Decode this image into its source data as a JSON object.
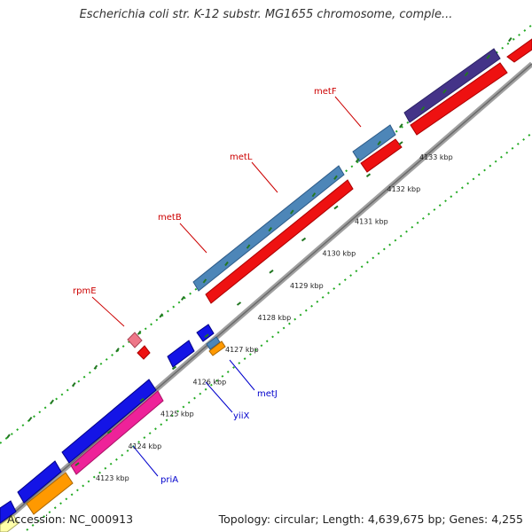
{
  "title": "Escherichia coli str. K-12 substr. MG1655 chromosome, comple...",
  "footer": {
    "accession": "Accession: NC_000913",
    "summary": "Topology: circular; Length: 4,639,675 bp; Genes: 4,255"
  },
  "ticks": [
    "4123 kbp",
    "4124 kbp",
    "4125 kbp",
    "4126 kbp",
    "4127 kbp",
    "4128 kbp",
    "4129 kbp",
    "4130 kbp",
    "4131 kbp",
    "4132 kbp",
    "4133 kbp"
  ],
  "gene_labels_upper": [
    "rpmE",
    "metB",
    "metL",
    "metF"
  ],
  "gene_labels_lower": [
    "metJ",
    "yiiX",
    "priA"
  ],
  "colors": {
    "backbone": "#a0a0a0",
    "tick_dots": "#22aa22",
    "tick_marks": "#227722",
    "steelblue": "#4d86b8",
    "red": "#ee1111",
    "blue": "#1414e6",
    "pink": "#ee2299",
    "orange": "#ff9900",
    "purple": "#443388",
    "upper_label": "#cc0000",
    "lower_label": "#0000cc"
  }
}
